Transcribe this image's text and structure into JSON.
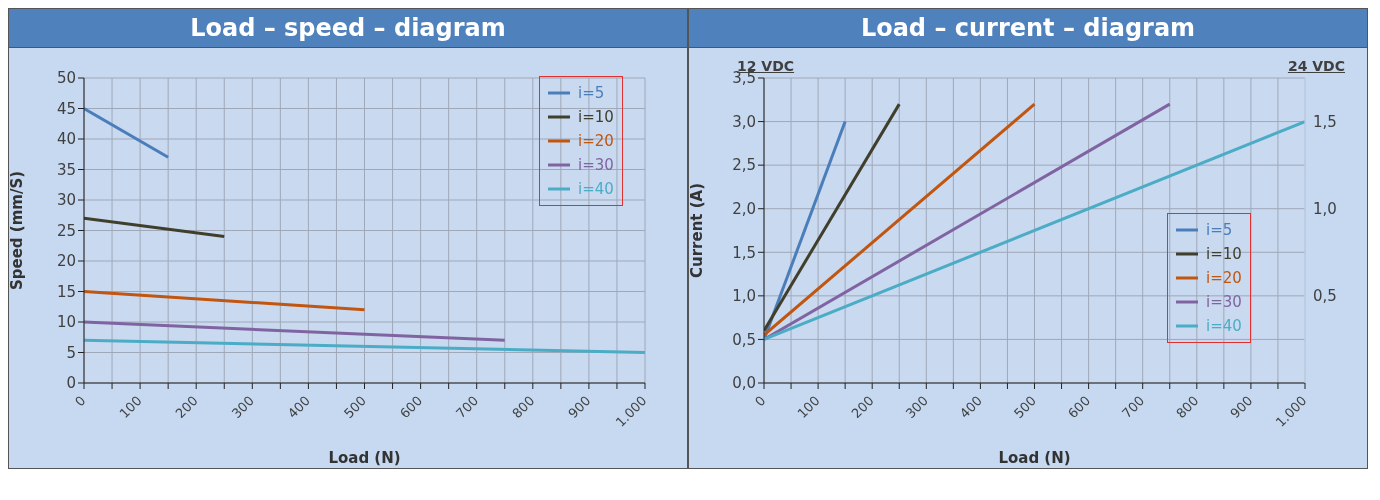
{
  "chart_data": [
    {
      "type": "line",
      "title": "Load – speed – diagram",
      "xlabel": "Load (N)",
      "ylabel": "Speed (mm/S)",
      "xlim": [
        0,
        1000
      ],
      "ylim": [
        0,
        50
      ],
      "xticks": [
        0,
        {
          "value": 50,
          "label": null
        },
        100,
        {
          "value": 150,
          "label": null
        },
        200,
        {
          "value": 250,
          "label": null
        },
        300,
        {
          "value": 350,
          "label": null
        },
        400,
        {
          "value": 450,
          "label": null
        },
        500,
        {
          "value": 550,
          "label": null
        },
        600,
        {
          "value": 650,
          "label": null
        },
        700,
        {
          "value": 750,
          "label": null
        },
        800,
        {
          "value": 850,
          "label": null
        },
        900,
        {
          "value": 950,
          "label": null
        },
        {
          "value": 1000,
          "label": "1.000"
        }
      ],
      "yticks": [
        0,
        5,
        10,
        15,
        20,
        25,
        30,
        35,
        40,
        45,
        50
      ],
      "grid": true,
      "legend": "top right",
      "marker": "none",
      "line_style": "solid",
      "series": [
        {
          "name": "i=5",
          "color": "#4a7ebb",
          "x": [
            0,
            150
          ],
          "values": [
            45,
            37
          ]
        },
        {
          "name": "i=10",
          "color": "#403f2c",
          "x": [
            0,
            250
          ],
          "values": [
            27,
            24
          ]
        },
        {
          "name": "i=20",
          "color": "#c0560f",
          "x": [
            0,
            500
          ],
          "values": [
            15,
            12
          ]
        },
        {
          "name": "i=30",
          "color": "#8064a2",
          "x": [
            0,
            750
          ],
          "values": [
            10,
            7
          ]
        },
        {
          "name": "i=40",
          "color": "#4bacc6",
          "x": [
            0,
            1000
          ],
          "values": [
            7,
            5
          ]
        }
      ]
    },
    {
      "type": "line",
      "title": "Load – current – diagram",
      "xlabel": "Load (N)",
      "ylabel": "Current (A)",
      "annotations": [
        "12 VDC",
        "24 VDC"
      ],
      "xlim": [
        0,
        1000
      ],
      "ylim": [
        0,
        3.5
      ],
      "y2lim": [
        0,
        1.75
      ],
      "xticks": [
        0,
        {
          "value": 50,
          "label": null
        },
        100,
        {
          "value": 150,
          "label": null
        },
        200,
        {
          "value": 250,
          "label": null
        },
        300,
        {
          "value": 350,
          "label": null
        },
        400,
        {
          "value": 450,
          "label": null
        },
        500,
        {
          "value": 550,
          "label": null
        },
        600,
        {
          "value": 650,
          "label": null
        },
        700,
        {
          "value": 750,
          "label": null
        },
        800,
        {
          "value": 850,
          "label": null
        },
        900,
        {
          "value": 950,
          "label": null
        },
        {
          "value": 1000,
          "label": "1.000"
        }
      ],
      "yticks": [
        {
          "value": 0,
          "label": "0,0"
        },
        {
          "value": 0.5,
          "label": "0,5"
        },
        {
          "value": 1,
          "label": "1,0"
        },
        {
          "value": 1.5,
          "label": "1,5"
        },
        {
          "value": 2,
          "label": "2,0"
        },
        {
          "value": 2.5,
          "label": "2,5"
        },
        {
          "value": 3,
          "label": "3,0"
        },
        {
          "value": 3.5,
          "label": "3,5"
        }
      ],
      "y2ticks": [
        {
          "value": 0.5,
          "label": "0,5"
        },
        {
          "value": 1,
          "label": "1,0"
        },
        {
          "value": 1.5,
          "label": "1,5"
        }
      ],
      "grid": true,
      "legend": "bottom right",
      "marker": "none",
      "line_style": "solid",
      "series": [
        {
          "name": "i=5",
          "color": "#4a7ebb",
          "x": [
            0,
            150
          ],
          "values": [
            0.5,
            3.0
          ]
        },
        {
          "name": "i=10",
          "color": "#403f2c",
          "x": [
            0,
            250
          ],
          "values": [
            0.6,
            3.2
          ]
        },
        {
          "name": "i=20",
          "color": "#c0560f",
          "x": [
            0,
            500
          ],
          "values": [
            0.55,
            3.2
          ]
        },
        {
          "name": "i=30",
          "color": "#8064a2",
          "x": [
            0,
            750
          ],
          "values": [
            0.5,
            3.2
          ]
        },
        {
          "name": "i=40",
          "color": "#4bacc6",
          "x": [
            0,
            1000
          ],
          "values": [
            0.5,
            3.0
          ]
        }
      ]
    }
  ]
}
